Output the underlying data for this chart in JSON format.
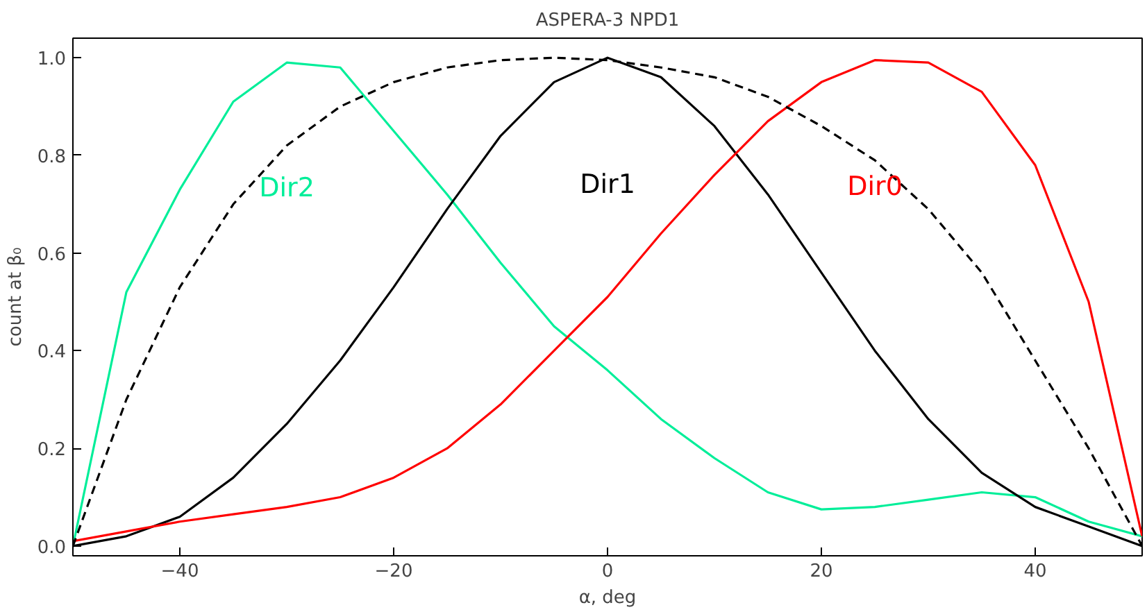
{
  "chart_data": {
    "type": "line",
    "title": "ASPERA-3 NPD1",
    "xlabel": "α, deg",
    "ylabel": "count at β₀",
    "x": [
      -50,
      -45,
      -40,
      -35,
      -30,
      -25,
      -20,
      -15,
      -10,
      -5,
      0,
      5,
      10,
      15,
      20,
      25,
      30,
      35,
      40,
      45,
      50
    ],
    "series": [
      {
        "name": "Dir2",
        "color": "#00ee99",
        "values": [
          0.0,
          0.52,
          0.73,
          0.91,
          0.99,
          0.98,
          0.85,
          0.72,
          0.58,
          0.45,
          0.36,
          0.26,
          0.18,
          0.11,
          0.075,
          0.08,
          0.095,
          0.11,
          0.1,
          0.05,
          0.02
        ]
      },
      {
        "name": "Dir1",
        "color": "#000000",
        "values": [
          0.0,
          0.02,
          0.06,
          0.14,
          0.25,
          0.38,
          0.53,
          0.69,
          0.84,
          0.95,
          1.0,
          0.96,
          0.86,
          0.72,
          0.56,
          0.4,
          0.26,
          0.15,
          0.08,
          0.04,
          0.0
        ]
      },
      {
        "name": "Dir0",
        "color": "#ff0000",
        "values": [
          0.01,
          0.03,
          0.05,
          0.065,
          0.08,
          0.1,
          0.14,
          0.2,
          0.29,
          0.4,
          0.51,
          0.64,
          0.76,
          0.87,
          0.95,
          0.995,
          0.99,
          0.93,
          0.78,
          0.5,
          0.02
        ]
      },
      {
        "color": "#000000",
        "line_style": "dashed",
        "values": [
          0.0,
          0.3,
          0.53,
          0.7,
          0.82,
          0.9,
          0.95,
          0.98,
          0.995,
          1.0,
          0.995,
          0.98,
          0.96,
          0.92,
          0.86,
          0.79,
          0.69,
          0.56,
          0.38,
          0.2,
          0.0
        ]
      }
    ],
    "xlim": [
      -50,
      50
    ],
    "ylim": [
      -0.02,
      1.04
    ],
    "xticks": [
      -40,
      -20,
      0,
      20,
      40
    ],
    "yticks": [
      {
        "value": 0,
        "label": "0.0"
      },
      0.2,
      0.4,
      0.6,
      0.8,
      {
        "value": 1,
        "label": "1.0"
      }
    ],
    "grid": false,
    "line_style": "solid"
  }
}
